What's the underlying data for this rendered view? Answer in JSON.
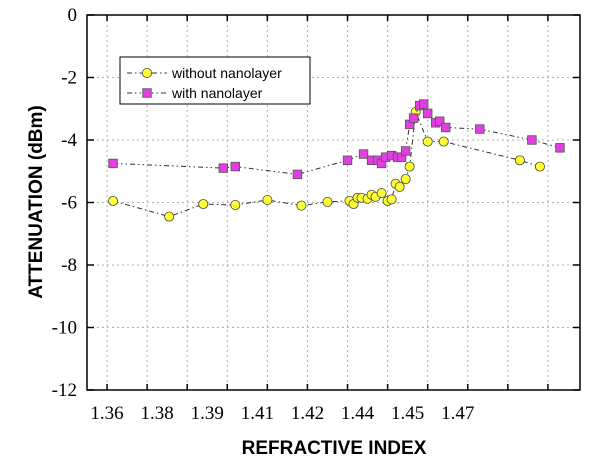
{
  "chart_data": {
    "type": "line",
    "title": "",
    "xlabel": "REFRACTIVE INDEX",
    "ylabel": "ATTENUATION (dBm)",
    "xlim": [
      1.355,
      1.478
    ],
    "ylim": [
      -12,
      0
    ],
    "x_ticks": [
      1.36,
      1.37,
      1.38,
      1.39,
      1.4,
      1.41,
      1.42,
      1.43,
      1.44,
      1.45,
      1.46,
      1.47
    ],
    "x_tick_labels": [
      "1.36",
      "1.38",
      "1.39",
      "1.41",
      "1.42",
      "1.44",
      "1.45",
      "1.47"
    ],
    "x_tick_label_positions": [
      1.36,
      1.3725,
      1.385,
      1.3975,
      1.41,
      1.4225,
      1.435,
      1.4475
    ],
    "y_ticks": [
      0,
      -2,
      -4,
      -6,
      -8,
      -10,
      -12
    ],
    "y_tick_labels": [
      "0",
      "-2",
      "-4",
      "-6",
      "-8",
      "-10",
      "-12"
    ],
    "grid": true,
    "legend_position": "top-left",
    "series": [
      {
        "name": "without nanolayer",
        "color": "#ffff33",
        "marker": "circle",
        "line_style": "dash-dot",
        "points": [
          [
            1.3615,
            -5.95
          ],
          [
            1.3755,
            -6.45
          ],
          [
            1.384,
            -6.05
          ],
          [
            1.392,
            -6.08
          ],
          [
            1.4,
            -5.92
          ],
          [
            1.4085,
            -6.1
          ],
          [
            1.415,
            -5.98
          ],
          [
            1.4205,
            -5.95
          ],
          [
            1.4215,
            -6.05
          ],
          [
            1.4225,
            -5.85
          ],
          [
            1.4235,
            -5.85
          ],
          [
            1.425,
            -5.88
          ],
          [
            1.426,
            -5.75
          ],
          [
            1.427,
            -5.82
          ],
          [
            1.4285,
            -5.7
          ],
          [
            1.43,
            -5.95
          ],
          [
            1.431,
            -5.9
          ],
          [
            1.432,
            -5.4
          ],
          [
            1.433,
            -5.5
          ],
          [
            1.4345,
            -5.25
          ],
          [
            1.4355,
            -4.85
          ],
          [
            1.437,
            -3.1
          ],
          [
            1.44,
            -4.05
          ],
          [
            1.444,
            -4.05
          ],
          [
            1.463,
            -4.65
          ],
          [
            1.468,
            -4.85
          ]
        ]
      },
      {
        "name": "with nanolayer",
        "color": "#e040e0",
        "marker": "square",
        "line_style": "dash-dot-dot",
        "points": [
          [
            1.3615,
            -4.75
          ],
          [
            1.389,
            -4.9
          ],
          [
            1.392,
            -4.85
          ],
          [
            1.4075,
            -5.1
          ],
          [
            1.42,
            -4.65
          ],
          [
            1.424,
            -4.45
          ],
          [
            1.426,
            -4.65
          ],
          [
            1.4275,
            -4.65
          ],
          [
            1.4285,
            -4.75
          ],
          [
            1.4295,
            -4.55
          ],
          [
            1.431,
            -4.5
          ],
          [
            1.4325,
            -4.55
          ],
          [
            1.4335,
            -4.55
          ],
          [
            1.4345,
            -4.35
          ],
          [
            1.4355,
            -3.5
          ],
          [
            1.4365,
            -3.3
          ],
          [
            1.438,
            -2.9
          ],
          [
            1.439,
            -2.85
          ],
          [
            1.44,
            -3.15
          ],
          [
            1.442,
            -3.45
          ],
          [
            1.443,
            -3.4
          ],
          [
            1.4445,
            -3.6
          ],
          [
            1.453,
            -3.65
          ],
          [
            1.466,
            -4.0
          ],
          [
            1.473,
            -4.25
          ]
        ]
      }
    ]
  }
}
